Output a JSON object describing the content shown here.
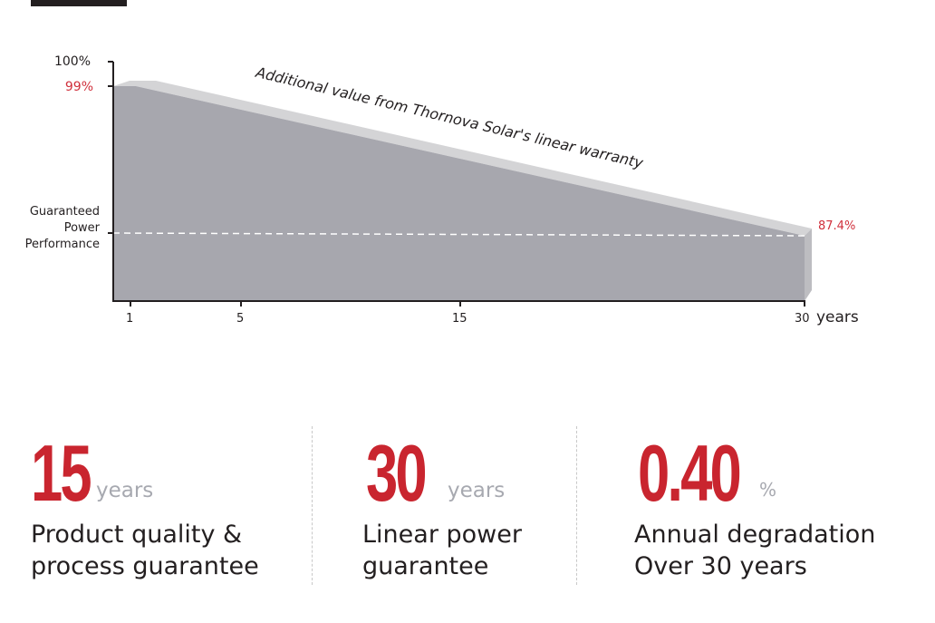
{
  "chart_data": {
    "type": "area",
    "x": [
      1,
      30
    ],
    "values": [
      99,
      87.4
    ],
    "xticks": [
      "1",
      "5",
      "15",
      "30"
    ],
    "xunit": "years",
    "yticks": [
      "100%",
      "99%"
    ],
    "guarantee_label": "Guaranteed Power Performance",
    "end_label": "87.4%",
    "annotation": "Additional value from Thornova Solar's linear warranty",
    "colors": {
      "area": "#a7a7ae",
      "band": "#d4d4d6",
      "highlight": "#d0303c"
    }
  },
  "stats": [
    {
      "value": "15",
      "unit": "years",
      "line1": "Product quality &",
      "line2": "process guarantee"
    },
    {
      "value": "30",
      "unit": "years",
      "line1": "Linear power",
      "line2": "guarantee"
    },
    {
      "value": "0.40",
      "unit": "%",
      "line1": "Annual degradation",
      "line2": "Over 30 years"
    }
  ]
}
